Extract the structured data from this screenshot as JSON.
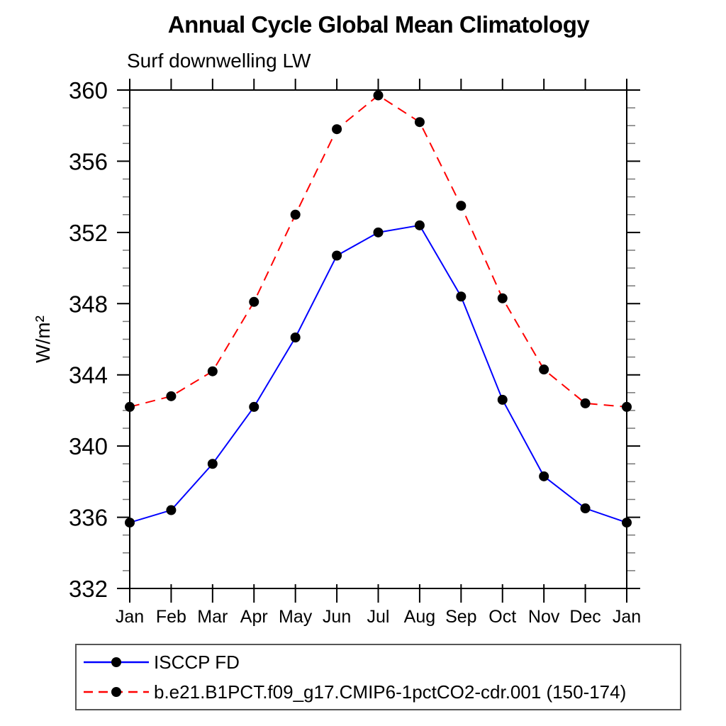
{
  "header": {
    "title": "Annual Cycle Global Mean Climatology",
    "subtitle": "Surf downwelling LW"
  },
  "chart_data": {
    "type": "line",
    "title": "Annual Cycle Global Mean Climatology",
    "subtitle": "Surf downwelling LW",
    "xlabel": "",
    "ylabel": "W/m²",
    "categories": [
      "Jan",
      "Feb",
      "Mar",
      "Apr",
      "May",
      "Jun",
      "Jul",
      "Aug",
      "Sep",
      "Oct",
      "Nov",
      "Dec",
      "Jan"
    ],
    "series": [
      {
        "name": "ISCCP FD",
        "color": "#0000ff",
        "line_style": "solid",
        "marker": "filled-circle",
        "marker_color": "#000000",
        "values": [
          335.7,
          336.4,
          339.0,
          342.2,
          346.1,
          350.7,
          352.0,
          352.4,
          348.4,
          342.6,
          338.3,
          336.5,
          335.7
        ]
      },
      {
        "name": "b.e21.B1PCT.f09_g17.CMIP6-1pctCO2-cdr.001 (150-174)",
        "color": "#ff0000",
        "line_style": "dashed",
        "marker": "filled-circle",
        "marker_color": "#000000",
        "values": [
          342.2,
          342.8,
          344.2,
          348.1,
          353.0,
          357.8,
          359.7,
          358.2,
          353.5,
          348.3,
          344.3,
          342.4,
          342.2
        ]
      }
    ],
    "ylim": [
      332,
      360
    ],
    "yticks_major": [
      332,
      336,
      340,
      344,
      348,
      352,
      356,
      360
    ],
    "ytick_minor_step": 1,
    "grid": false,
    "legend_position": "bottom-left"
  }
}
